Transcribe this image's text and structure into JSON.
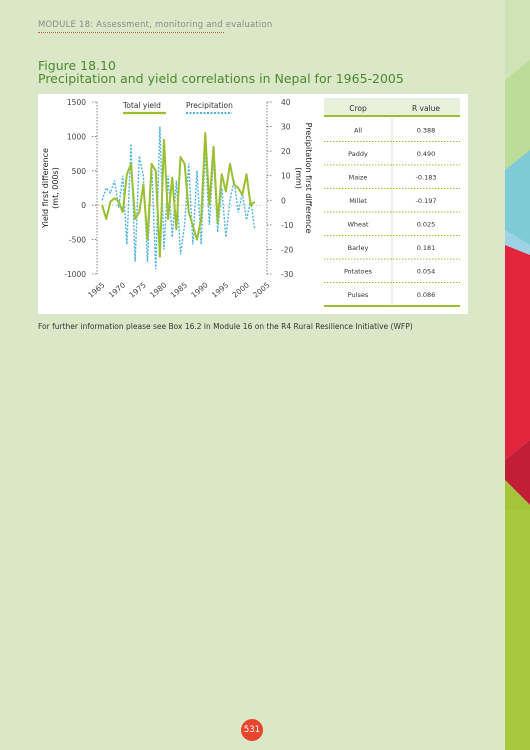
{
  "header": {
    "module": "MODULE 18: Assessment, monitoring and evaluation"
  },
  "figure": {
    "number": "Figure 18.10",
    "title": "Precipitation and yield correlations in Nepal for 1965-2005"
  },
  "colors": {
    "yield": "#9bbf2e",
    "precip": "#4db3dc",
    "brand_green": "#4a8a2c",
    "page_badge": "#e8452c"
  },
  "chart_data": {
    "type": "line",
    "legend": [
      "Total yield",
      "Precipitation"
    ],
    "ylabel_left": "Yield first difference (mt, 000s)",
    "ylabel_right": "Precipitation first difference (mm)",
    "ylim_left": [
      -1000,
      1500
    ],
    "ylim_right": [
      -30,
      40
    ],
    "yticks_left": [
      "1500",
      "1000",
      "500",
      "0",
      "-500",
      "-1000"
    ],
    "yticks_right": [
      "40",
      "30",
      "20",
      "10",
      "0",
      "-10",
      "-20",
      "-30"
    ],
    "xlim": [
      1965,
      2005
    ],
    "xticks": [
      "1965",
      "1970",
      "1975",
      "1980",
      "1985",
      "1990",
      "1995",
      "2000",
      "2005"
    ],
    "series": [
      {
        "name": "Total yield",
        "x": [
          1966,
          1967,
          1968,
          1969,
          1970,
          1971,
          1972,
          1973,
          1974,
          1975,
          1976,
          1977,
          1978,
          1979,
          1980,
          1981,
          1982,
          1983,
          1984,
          1985,
          1986,
          1987,
          1988,
          1989,
          1990,
          1991,
          1992,
          1993,
          1994,
          1995,
          1996,
          1997,
          1998,
          1999,
          2000,
          2001,
          2002,
          2003
        ],
        "values": [
          0,
          -200,
          50,
          100,
          60,
          -100,
          450,
          600,
          -200,
          -100,
          300,
          -500,
          600,
          500,
          -750,
          950,
          -200,
          400,
          -350,
          700,
          600,
          -100,
          -300,
          -500,
          -200,
          1050,
          0,
          850,
          -250,
          450,
          200,
          600,
          300,
          250,
          150,
          450,
          0,
          50
        ]
      },
      {
        "name": "Precipitation",
        "x": [
          1966,
          1967,
          1968,
          1969,
          1970,
          1971,
          1972,
          1973,
          1974,
          1975,
          1976,
          1977,
          1978,
          1979,
          1980,
          1981,
          1982,
          1983,
          1984,
          1985,
          1986,
          1987,
          1988,
          1989,
          1990,
          1991,
          1992,
          1993,
          1994,
          1995,
          1996,
          1997,
          1998,
          1999,
          2000,
          2001,
          2002,
          2003
        ],
        "values": [
          0,
          5,
          3,
          8,
          -3,
          10,
          -18,
          23,
          -25,
          18,
          10,
          -25,
          15,
          -28,
          30,
          -20,
          10,
          -15,
          8,
          -22,
          -10,
          15,
          -18,
          12,
          -18,
          20,
          -10,
          18,
          -13,
          5,
          -15,
          0,
          8,
          -5,
          3,
          -8,
          0,
          -12
        ]
      }
    ],
    "table": {
      "headers": [
        "Crop",
        "R value"
      ],
      "rows": [
        [
          "All",
          "0.388"
        ],
        [
          "Paddy",
          "0.490"
        ],
        [
          "Maize",
          "-0.183"
        ],
        [
          "Millet",
          "-0.197"
        ],
        [
          "Wheat",
          "0.025"
        ],
        [
          "Barley",
          "0.181"
        ],
        [
          "Potatoes",
          "0.054"
        ],
        [
          "Pulses",
          "0.086"
        ]
      ]
    }
  },
  "note": "For further information please see Box 16.2 in Module 16 on the R4 Rural Resilience Initiative (WFP)",
  "page_number": "531"
}
